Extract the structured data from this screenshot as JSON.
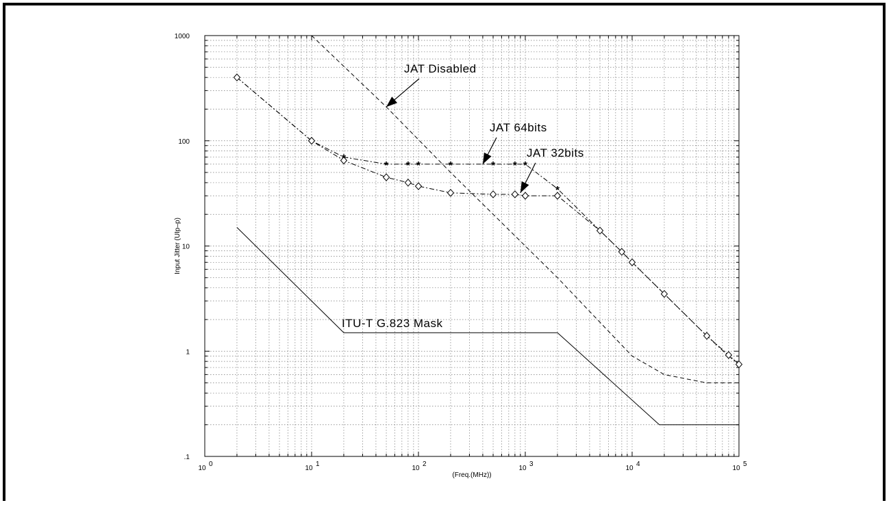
{
  "chart_data": {
    "type": "line",
    "title": "",
    "xlabel": "(Freq.(MHz))",
    "ylabel": "Input Jitter (UIp–p)",
    "xscale": "log",
    "yscale": "log",
    "xlim": [
      1,
      100000
    ],
    "ylim": [
      0.1,
      1000
    ],
    "grid": true,
    "x_ticks": [
      {
        "value": 1,
        "base": "10",
        "exp": "0"
      },
      {
        "value": 10,
        "base": "10",
        "exp": "1"
      },
      {
        "value": 100,
        "base": "10",
        "exp": "2"
      },
      {
        "value": 1000,
        "base": "10",
        "exp": "3"
      },
      {
        "value": 10000,
        "base": "10",
        "exp": "4"
      },
      {
        "value": 100000,
        "base": "10",
        "exp": "5"
      }
    ],
    "y_ticks": [
      {
        "value": 0.1,
        "label": ".1"
      },
      {
        "value": 1,
        "label": "1"
      },
      {
        "value": 10,
        "label": "10"
      },
      {
        "value": 100,
        "label": "100"
      },
      {
        "value": 1000,
        "label": "1000"
      }
    ],
    "series": [
      {
        "name": "ITU-T G.823 Mask",
        "style": "solid",
        "x": [
          2,
          20,
          2000,
          18000,
          100000
        ],
        "y": [
          15,
          1.5,
          1.5,
          0.2,
          0.2
        ]
      },
      {
        "name": "JAT Disabled",
        "style": "dashed",
        "x": [
          10,
          50,
          200,
          1000,
          2000,
          10000,
          20000,
          50000,
          100000
        ],
        "y": [
          1000,
          210,
          50,
          10,
          5,
          0.9,
          0.6,
          0.5,
          0.5
        ]
      },
      {
        "name": "JAT 64bits",
        "style": "dash-dot",
        "marker": "asterisk",
        "x": [
          2,
          10,
          20,
          50,
          80,
          100,
          200,
          500,
          800,
          1000,
          2000,
          5000,
          8000,
          10000,
          20000,
          50000,
          80000,
          100000
        ],
        "y": [
          400,
          100,
          70,
          60,
          60,
          60,
          60,
          60,
          60,
          60,
          35,
          14,
          8.8,
          7,
          3.5,
          1.4,
          0.9,
          0.75
        ]
      },
      {
        "name": "JAT 32bits",
        "style": "dash-dot",
        "marker": "diamond",
        "x": [
          2,
          10,
          20,
          50,
          80,
          100,
          200,
          500,
          800,
          1000,
          2000,
          5000,
          8000,
          10000,
          20000,
          50000,
          80000,
          100000
        ],
        "y": [
          400,
          100,
          65,
          45,
          40,
          37,
          32,
          31,
          31,
          30,
          30,
          14,
          8.8,
          7,
          3.5,
          1.4,
          0.92,
          0.75
        ]
      }
    ],
    "annotations": [
      {
        "text": "JAT Disabled",
        "arrow_to": {
          "x": 50,
          "y": 210
        }
      },
      {
        "text": "JAT 64bits",
        "arrow_to": {
          "x": 400,
          "y": 60
        }
      },
      {
        "text": "JAT 32bits",
        "arrow_to": {
          "x": 900,
          "y": 32
        }
      },
      {
        "text": "ITU-T G.823 Mask"
      }
    ]
  }
}
